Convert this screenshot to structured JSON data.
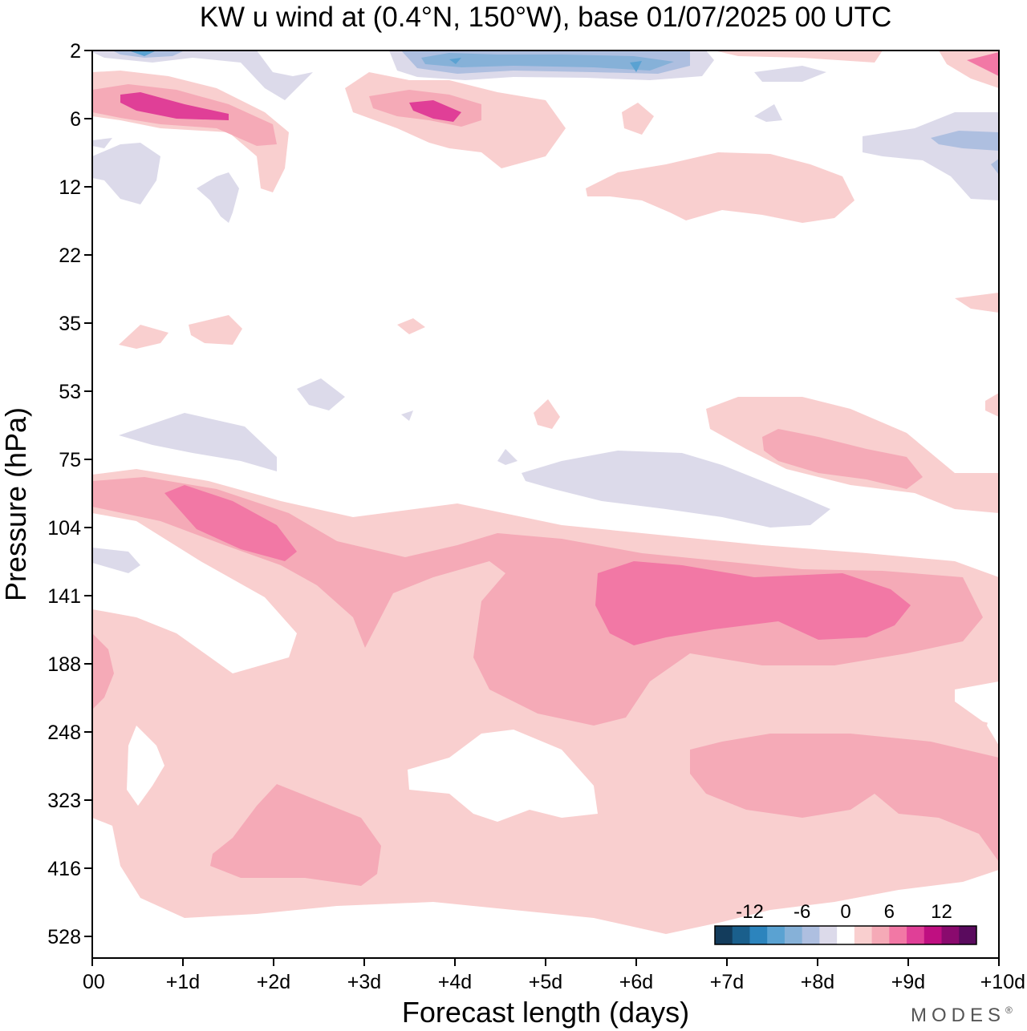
{
  "chart_data": {
    "type": "heatmap",
    "title": "KW u wind at (0.4°N, 150°W),  base 01/07/2025  00 UTC",
    "xlabel": "Forecast length (days)",
    "ylabel": "Pressure (hPa)",
    "x_ticks": [
      "00",
      "+1d",
      "+2d",
      "+3d",
      "+4d",
      "+5d",
      "+6d",
      "+7d",
      "+8d",
      "+9d",
      "+10d"
    ],
    "y_ticks": [
      "2",
      "6",
      "12",
      "22",
      "35",
      "53",
      "75",
      "104",
      "141",
      "188",
      "248",
      "323",
      "416",
      "528"
    ],
    "xlim": [
      0,
      10
    ],
    "y_scale": "log",
    "colorbar": {
      "ticks": [
        "-12",
        "-6",
        "0",
        "6",
        "12"
      ],
      "levels": [
        -16,
        -14,
        -12,
        -10,
        -8,
        -6,
        -4,
        -2,
        2,
        4,
        6,
        8,
        10,
        12,
        14,
        16
      ],
      "colors": [
        "#133c5c",
        "#1a5f8c",
        "#2c84bd",
        "#5aa2d2",
        "#86b1d8",
        "#aebfe0",
        "#dcdaea",
        "#ffffff",
        "#f9cfcf",
        "#f5aab7",
        "#f278a5",
        "#e03f97",
        "#bf0f81",
        "#8a0a6e",
        "#5a0b5e"
      ]
    },
    "filled_regions": [
      {
        "level": "2 to 4",
        "shade": "light-pink",
        "x_range_days": [
          0,
          10
        ],
        "pressure_range_hPa": [
          104,
          500
        ],
        "note": "broad positive anomaly throughout upper troposphere"
      },
      {
        "level": "4 to 6",
        "shade": "pink",
        "x_range_days": [
          0,
          10
        ],
        "pressure_range_hPa": [
          85,
          240
        ]
      },
      {
        "level": "6 to 8",
        "shade": "deep-pink",
        "x_range_days": [
          0.8,
          2.3
        ],
        "pressure_range_hPa": [
          90,
          125
        ]
      },
      {
        "level": "6 to 8",
        "shade": "deep-pink",
        "x_range_days": [
          5.6,
          9.0
        ],
        "pressure_range_hPa": [
          128,
          168
        ]
      },
      {
        "level": "4 to 6",
        "shade": "pink",
        "x_range_days": [
          1.3,
          3.2
        ],
        "pressure_range_hPa": [
          300,
          460
        ]
      },
      {
        "level": "4 to 6",
        "shade": "pink",
        "x_range_days": [
          6.6,
          10
        ],
        "pressure_range_hPa": [
          255,
          420
        ]
      },
      {
        "level": "-4 to -2",
        "shade": "lavender",
        "x_range_days": [
          4.7,
          8.1
        ],
        "pressure_range_hPa": [
          76,
          104
        ]
      },
      {
        "level": "-8 to -4",
        "shade": "blue",
        "x_range_days": [
          3.3,
          6.8
        ],
        "pressure_range_hPa": [
          2,
          3.4
        ]
      },
      {
        "level": "6 to 10",
        "shade": "magenta",
        "x_range_days": [
          0.3,
          1.5
        ],
        "pressure_range_hPa": [
          4.5,
          6
        ]
      }
    ]
  },
  "brand": "MODES",
  "brand_mark": "®"
}
